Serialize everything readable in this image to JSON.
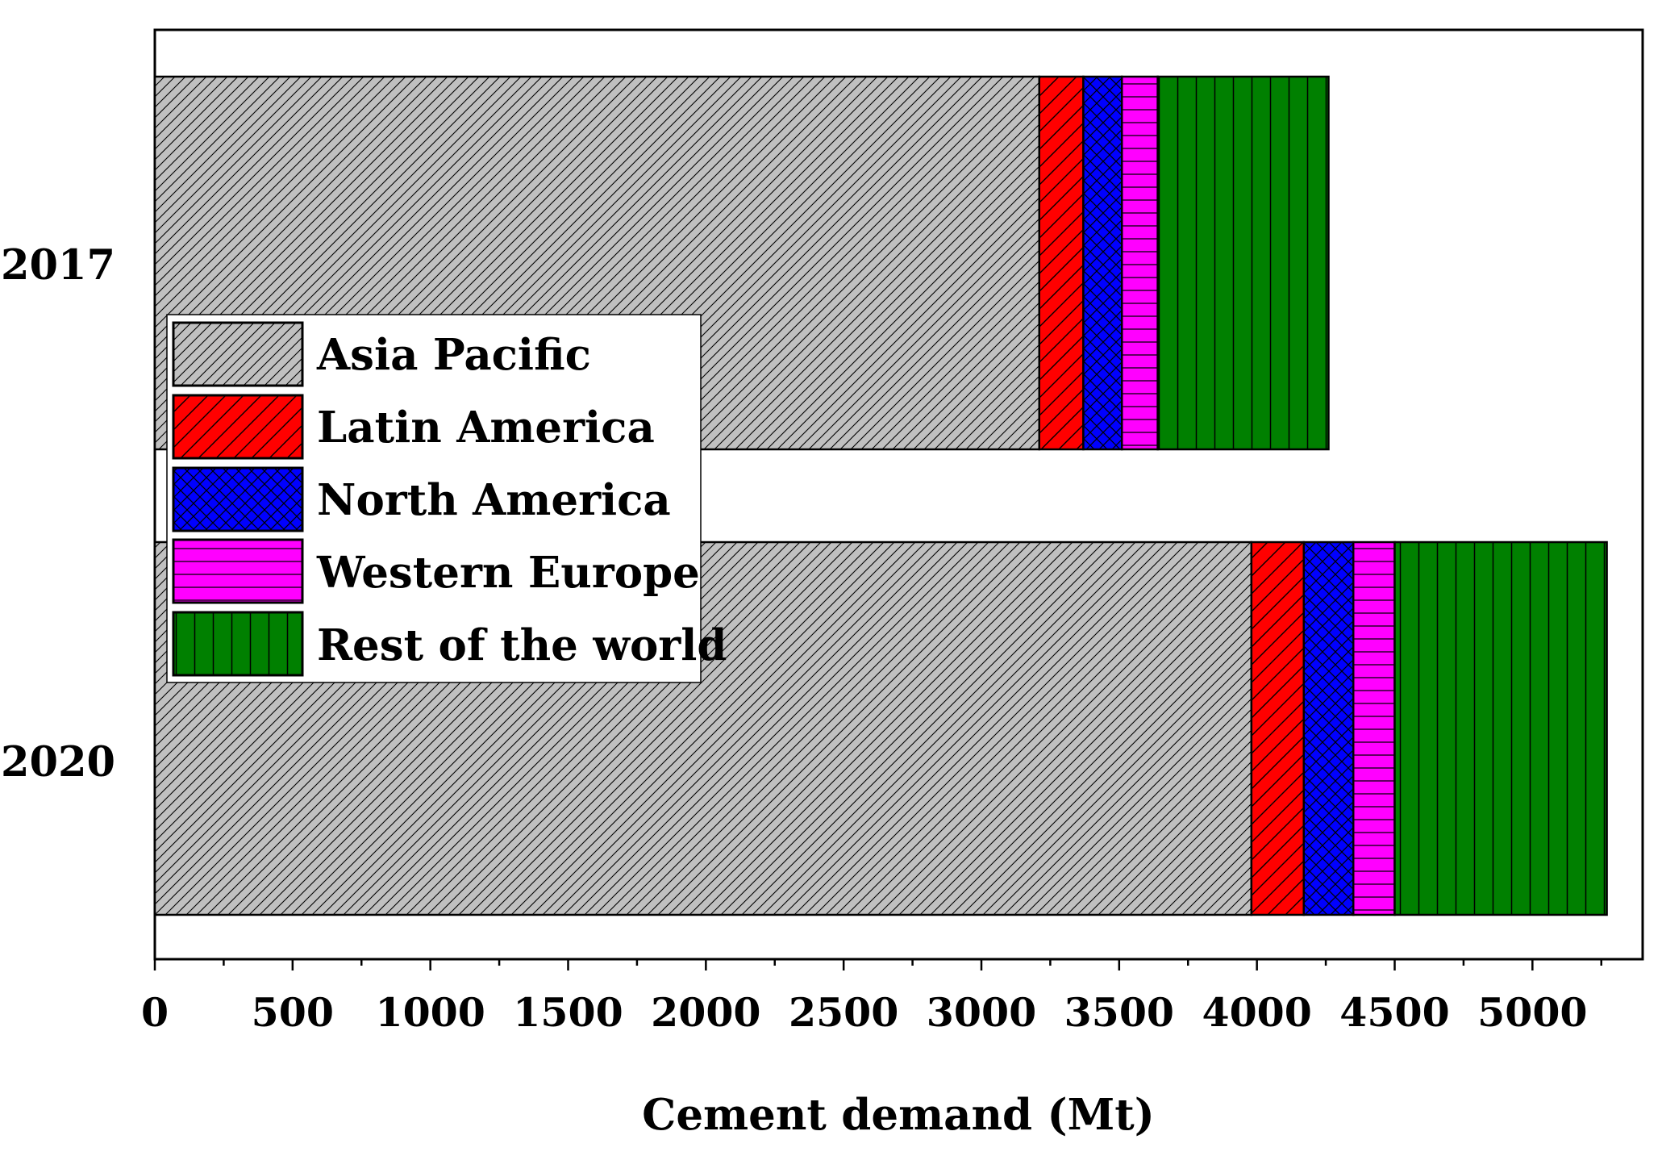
{
  "chart_data": {
    "type": "bar",
    "orientation": "horizontal",
    "stacked": true,
    "categories": [
      "2017",
      "2020"
    ],
    "xlabel": "Cement demand (Mt)",
    "ylabel": "",
    "xlim": [
      0,
      5400
    ],
    "xticks": [
      0,
      500,
      1000,
      1500,
      2000,
      2500,
      3000,
      3500,
      4000,
      4500,
      5000
    ],
    "xtick_labels": [
      "0",
      "500",
      "1000",
      "1500",
      "2000",
      "2500",
      "3000",
      "3500",
      "4000",
      "4500",
      "5000"
    ],
    "minor_tick_step": 250,
    "grid": false,
    "legend_position": "left, overlapping both bars",
    "series": [
      {
        "name": "Asia Pacific",
        "values": [
          3210,
          3980
        ],
        "color": "#c0c0c0",
        "pattern": "diagonal-hatch-fine"
      },
      {
        "name": "Latin America",
        "values": [
          160,
          190
        ],
        "color": "#ff0000",
        "pattern": "diagonal-hatch"
      },
      {
        "name": "North America",
        "values": [
          140,
          180
        ],
        "color": "#0000ff",
        "pattern": "crosshatch"
      },
      {
        "name": "Western Europe",
        "values": [
          130,
          150
        ],
        "color": "#ff00ff",
        "pattern": "horizontal-lines"
      },
      {
        "name": "Rest of the world",
        "values": [
          620,
          770
        ],
        "color": "#008000",
        "pattern": "vertical-lines"
      }
    ]
  }
}
